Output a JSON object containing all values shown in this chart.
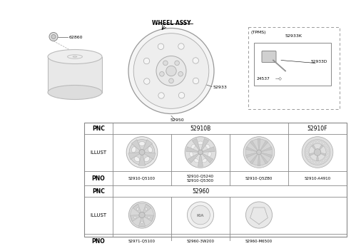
{
  "bg_color": "#ffffff",
  "wheel_assy_label": "WHEEL ASSY",
  "tpms_label": "(TPMS)",
  "part_62860": "62860",
  "part_52933": "52933",
  "part_52950": "52950",
  "part_52933K": "52933K",
  "part_52933D": "52933D",
  "part_24537": "24537",
  "table1_pnc1": "52910B",
  "table1_pnc2": "52910F",
  "table1_pno": [
    "52910-Q5100",
    "52910-Q5240\n52910-Q5300",
    "52910-Q5ZB0",
    "52910-A4910"
  ],
  "table2_pnc": "52960",
  "table2_pno": [
    "52971-Q5100",
    "52960-3W200",
    "52960-M6500"
  ],
  "row_label_pnc": "PNC",
  "row_label_illust": "ILLUST",
  "row_label_pno": "PNO"
}
